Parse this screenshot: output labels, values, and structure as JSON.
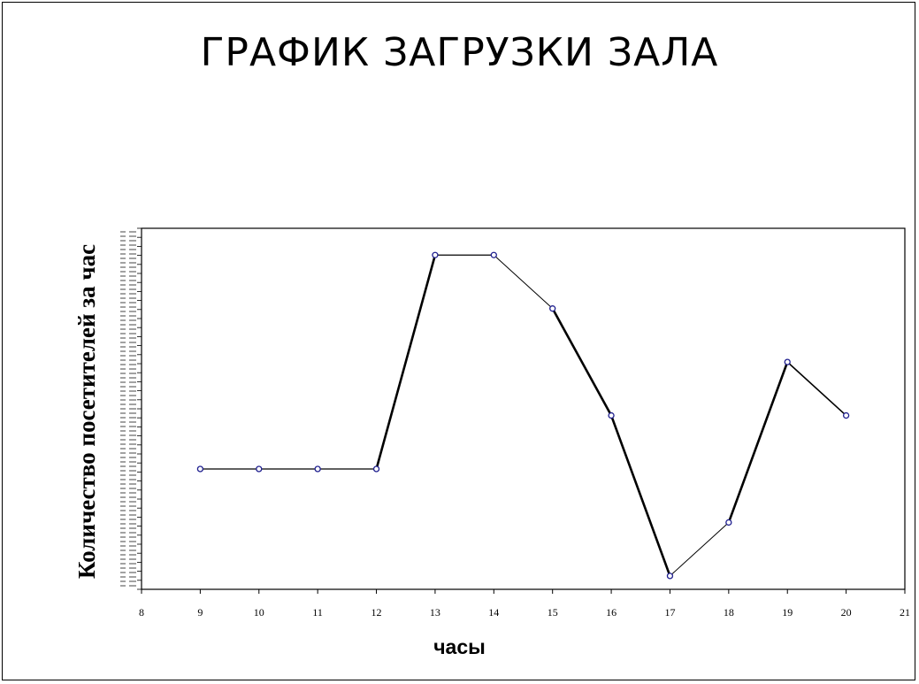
{
  "chart_data": {
    "type": "line",
    "title": "ГРАФИК ЗАГРУЗКИ ЗАЛА",
    "xlabel": "часы",
    "ylabel": "Количество посетителей за час",
    "x": [
      9,
      10,
      11,
      12,
      13,
      14,
      15,
      16,
      17,
      18,
      19,
      20
    ],
    "y": [
      4,
      4,
      4,
      4,
      8,
      8,
      7,
      5,
      2,
      3,
      6,
      5
    ],
    "xlim": [
      8,
      21
    ],
    "xticks": [
      "8",
      "9",
      "10",
      "11",
      "12",
      "13",
      "14",
      "15",
      "16",
      "17",
      "18",
      "19",
      "20",
      "21"
    ],
    "ylim": [
      1.75,
      8.5
    ],
    "grid": false,
    "legend": "none",
    "line_color": "#000000",
    "marker_color": "#1f1f8f"
  }
}
